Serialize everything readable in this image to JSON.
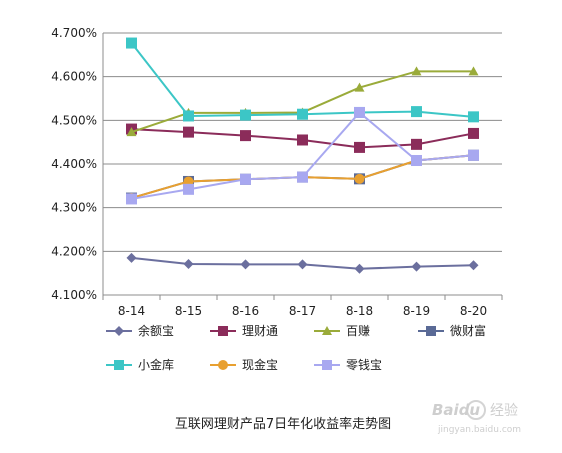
{
  "chart_data": {
    "type": "line",
    "title": "互联网理财产品7日年化收益率走势图",
    "categories": [
      "8-14",
      "8-15",
      "8-16",
      "8-17",
      "8-18",
      "8-19",
      "8-20"
    ],
    "ylim": [
      4.1,
      4.7
    ],
    "yticks": [
      "4.100%",
      "4.200%",
      "4.300%",
      "4.400%",
      "4.500%",
      "4.600%",
      "4.700%"
    ],
    "grid": "horizontal",
    "legend_position": "bottom",
    "series": [
      {
        "name": "余额宝",
        "color": "#6b6f9e",
        "marker": "diamond",
        "values": [
          4.185,
          4.171,
          4.17,
          4.17,
          4.16,
          4.165,
          4.168
        ]
      },
      {
        "name": "理财通",
        "color": "#8b2c5a",
        "marker": "square",
        "values": [
          4.48,
          4.473,
          4.465,
          4.455,
          4.438,
          4.445,
          4.47
        ]
      },
      {
        "name": "百赚",
        "color": "#9aab3a",
        "marker": "triangle",
        "values": [
          4.473,
          4.517,
          4.517,
          4.518,
          4.575,
          4.612,
          4.612
        ]
      },
      {
        "name": "微财富",
        "color": "#5a6a96",
        "marker": "square",
        "values": [
          4.322,
          4.36,
          4.365,
          4.37,
          4.366,
          4.408,
          4.42
        ]
      },
      {
        "name": "小金库",
        "color": "#3cc6c6",
        "marker": "square",
        "values": [
          4.677,
          4.51,
          4.512,
          4.514,
          4.518,
          4.52,
          4.508
        ]
      },
      {
        "name": "现金宝",
        "color": "#e8a030",
        "marker": "circle",
        "values": [
          4.322,
          4.36,
          4.365,
          4.37,
          4.366,
          4.408,
          4.42
        ]
      },
      {
        "name": "零钱宝",
        "color": "#a8a8f0",
        "marker": "square",
        "values": [
          4.32,
          4.342,
          4.365,
          4.37,
          4.518,
          4.408,
          4.42
        ]
      }
    ]
  },
  "watermark": {
    "brand": "Baidu",
    "cn": "经验",
    "url": "jingyan.baidu.com"
  }
}
